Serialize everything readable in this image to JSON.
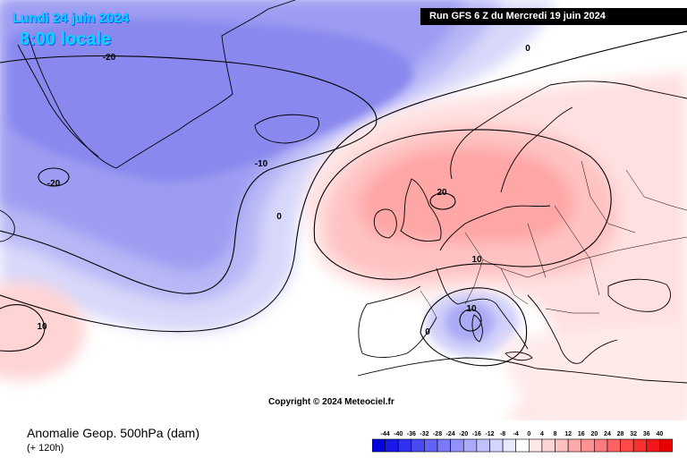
{
  "header": {
    "date": "Lundi 24 juin 2024",
    "time": "8:00 locale",
    "run": "Run GFS 6 Z du Mercredi 19 juin 2024"
  },
  "copyright": "Copyright © 2024 Meteociel.fr",
  "footer": {
    "title": "Anomalie Geop. 500hPa (dam)",
    "subtitle": "(+ 120h)"
  },
  "legend": {
    "labels": [
      "-44",
      "-40",
      "-36",
      "-32",
      "-28",
      "-24",
      "-20",
      "-16",
      "-12",
      "-8",
      "-4",
      "0",
      "4",
      "8",
      "12",
      "16",
      "20",
      "24",
      "28",
      "32",
      "36",
      "40"
    ],
    "colors": [
      "#0000e0",
      "#1818e8",
      "#3030f0",
      "#4a4af4",
      "#6262f6",
      "#7a7af8",
      "#9292fa",
      "#aaaafc",
      "#c0c0fd",
      "#d4d4fe",
      "#e8e8ff",
      "#ffffff",
      "#ffe8e8",
      "#ffd4d4",
      "#ffc0c0",
      "#ffaaaa",
      "#ff9292",
      "#ff7a7a",
      "#ff6262",
      "#ff4a4a",
      "#f83030",
      "#f01818",
      "#e80000"
    ]
  },
  "contour_labels": [
    {
      "text": "-20"
    },
    {
      "text": "-20"
    },
    {
      "text": "-10"
    },
    {
      "text": "0"
    },
    {
      "text": "0"
    },
    {
      "text": "20"
    },
    {
      "text": "10"
    },
    {
      "text": "10"
    },
    {
      "text": "10"
    },
    {
      "text": "0"
    }
  ]
}
